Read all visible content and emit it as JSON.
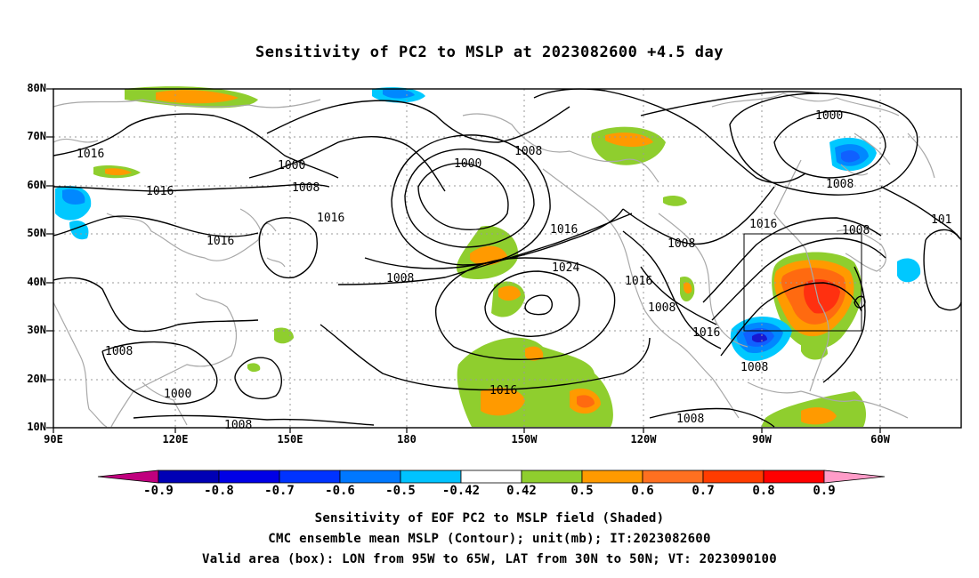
{
  "title": "Sensitivity of PC2 to MSLP at 2023082600 +4.5 day",
  "map": {
    "lat_labels": [
      "80N",
      "70N",
      "60N",
      "50N",
      "40N",
      "30N",
      "20N",
      "10N"
    ],
    "lon_labels": [
      "90E",
      "120E",
      "150E",
      "180",
      "150W",
      "120W",
      "90W",
      "60W"
    ],
    "contour_labels": [
      "1016",
      "1000",
      "1008",
      "1016",
      "1016",
      "1000",
      "1008",
      "1000",
      "1008",
      "1016",
      "1016",
      "1008",
      "1024",
      "1016",
      "1008",
      "1008",
      "1016",
      "1008",
      "1008",
      "1016",
      "1000",
      "1008",
      "1016",
      "1008",
      "101"
    ],
    "valid_box": {
      "lon_from": "95W",
      "lon_to": "65W",
      "lat_from": "30N",
      "lat_to": "50N"
    },
    "colors": {
      "contour": "#000000",
      "coast": "#a8a8a8",
      "positive": [
        "#8fce2e",
        "#ff9a00",
        "#ff6a10",
        "#ff3010"
      ],
      "negative": [
        "#00c8ff",
        "#0088ff",
        "#1060ff",
        "#1818d0"
      ]
    }
  },
  "colorbar": {
    "labels": [
      "-0.9",
      "-0.8",
      "-0.7",
      "-0.6",
      "-0.5",
      "-0.42",
      "0.42",
      "0.5",
      "0.6",
      "0.7",
      "0.8",
      "0.9"
    ],
    "colors": [
      "#c0007e",
      "#0000b5",
      "#0000e6",
      "#0033ff",
      "#0078ff",
      "#00c3ff",
      "#ffffff",
      "#8fce2e",
      "#ff9a00",
      "#ff7020",
      "#ff3c00",
      "#ff0000",
      "#ff9cc8"
    ]
  },
  "caption": {
    "line1": "Sensitivity of EOF PC2 to MSLP field (Shaded)",
    "line2": "CMC ensemble mean MSLP (Contour); unit(mb); IT:2023082600",
    "line3": "Valid area (box): LON from 95W to 65W, LAT from 30N to 50N; VT: 2023090100"
  }
}
